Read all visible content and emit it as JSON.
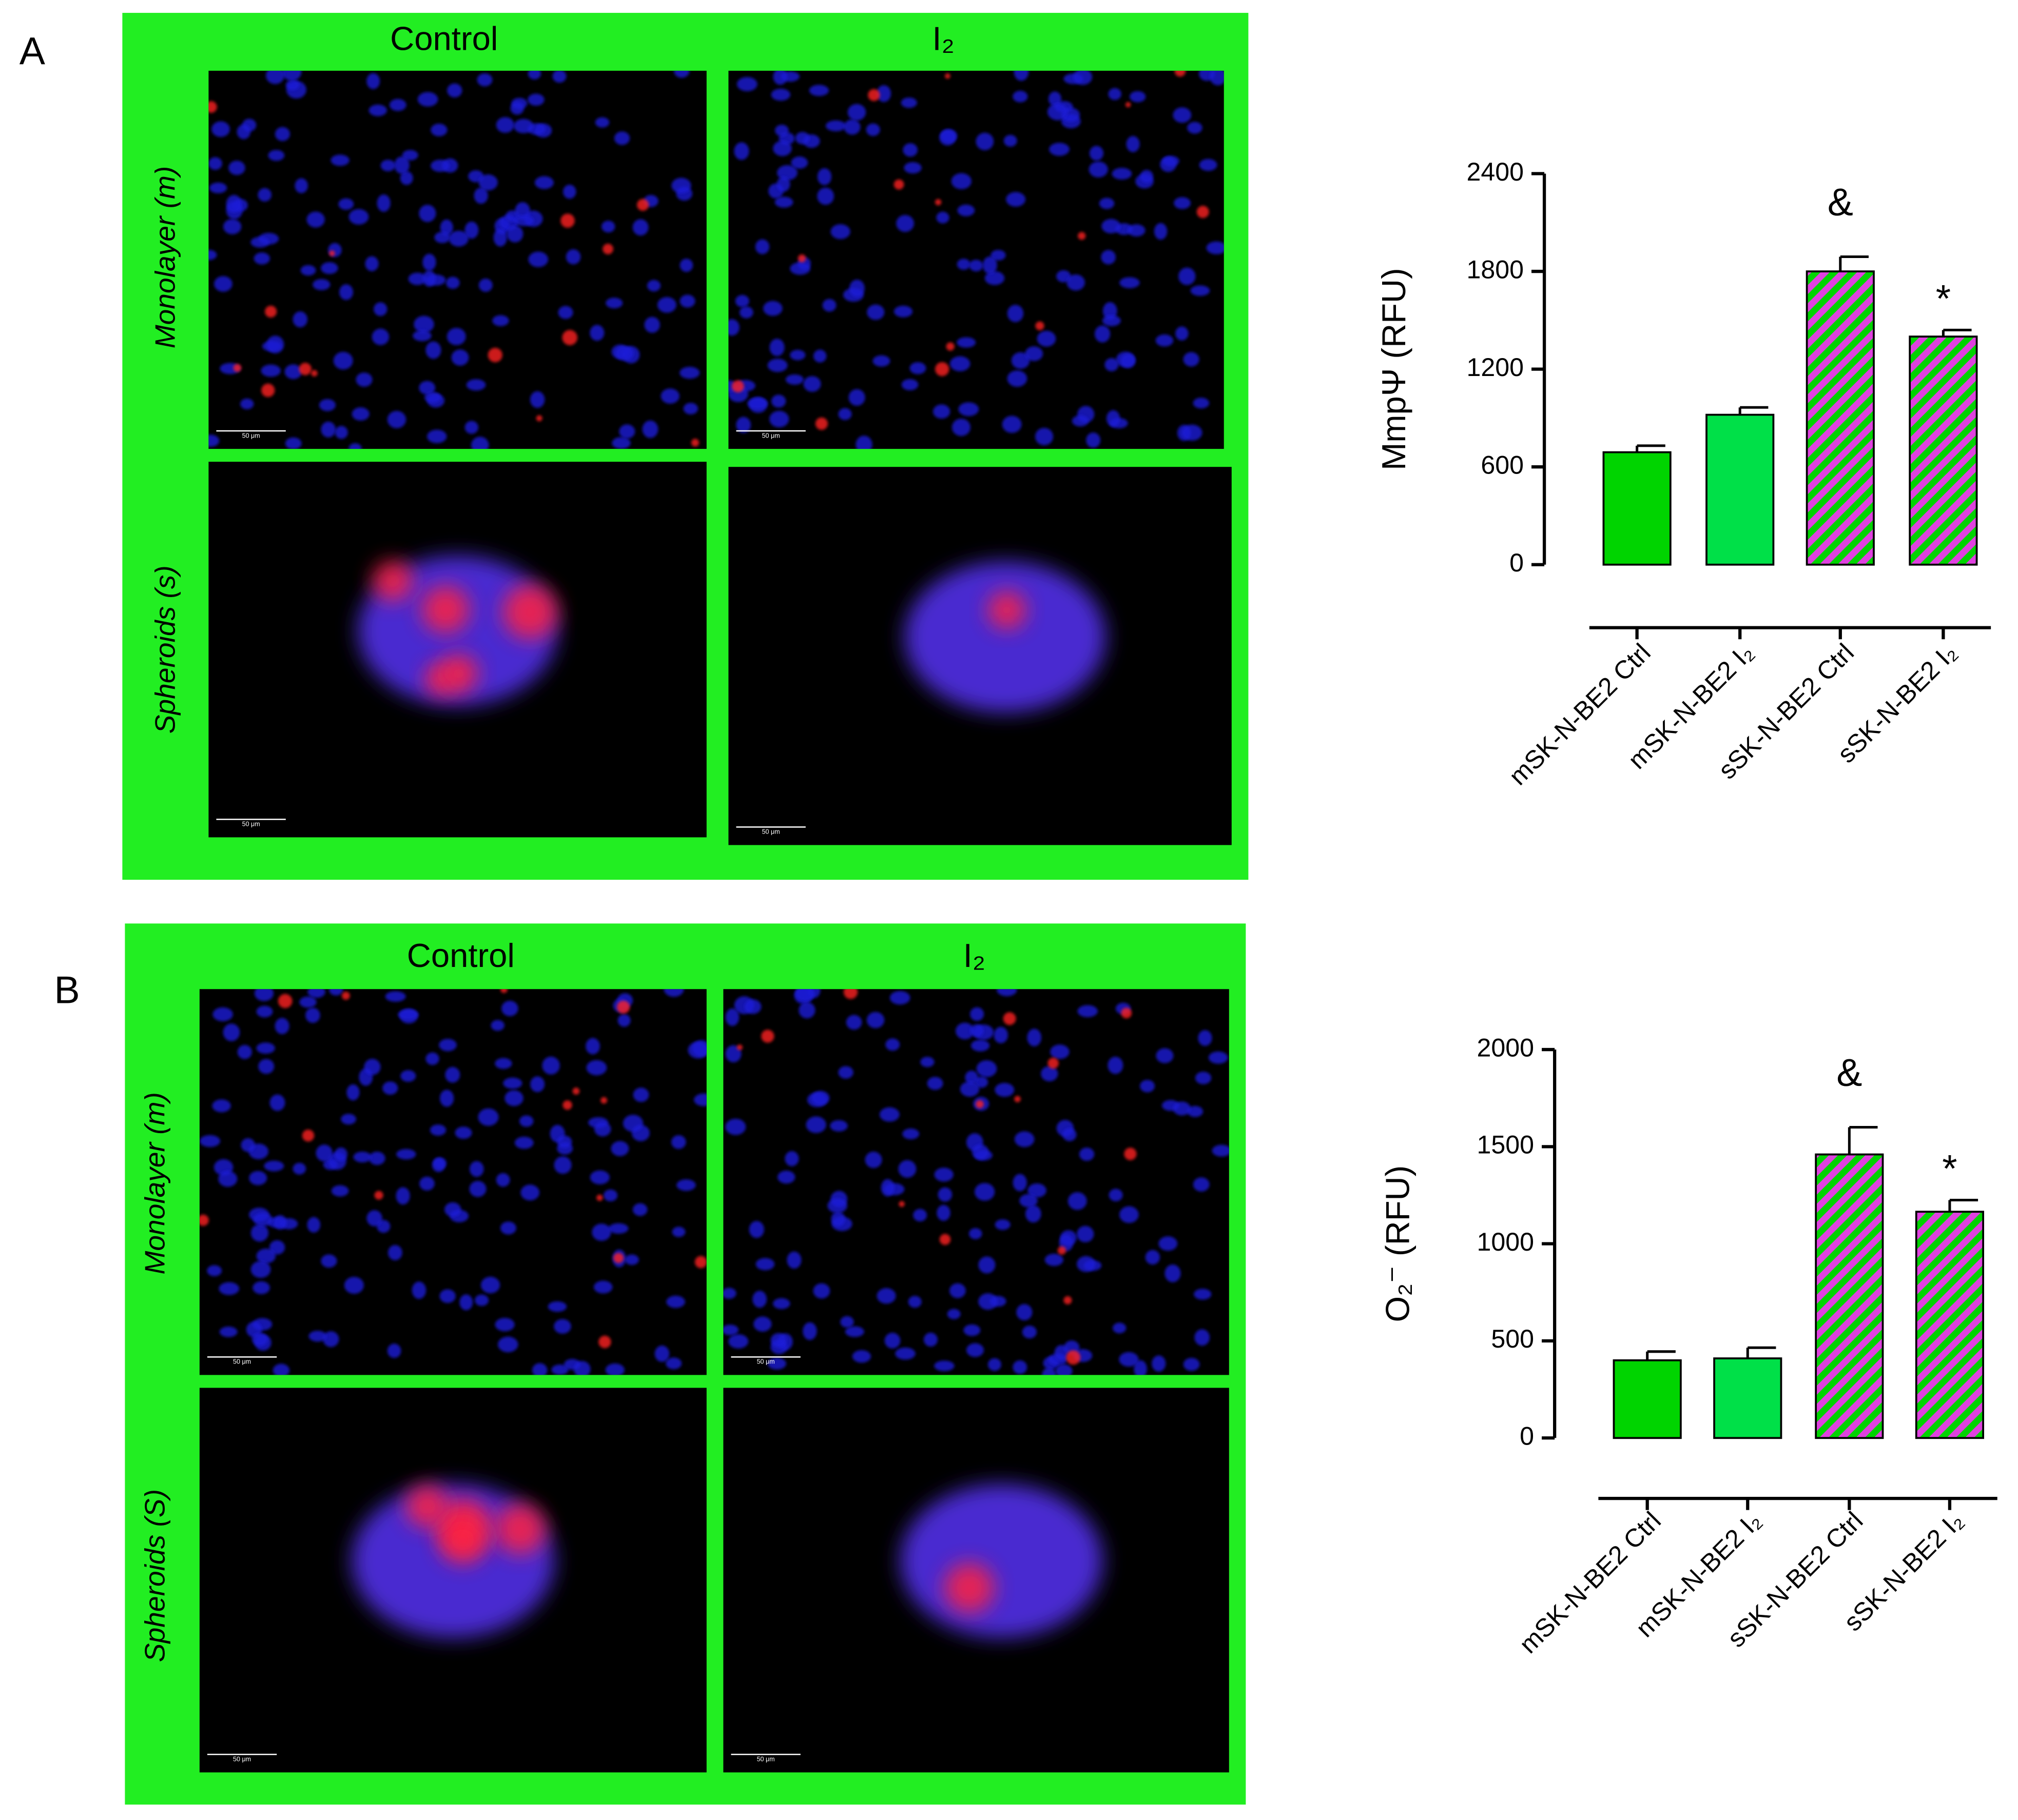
{
  "panels": [
    {
      "letter": "A",
      "columns": [
        "Control",
        "I₂"
      ],
      "rows": [
        "Monolayer (m)",
        "Spheroids (s)"
      ],
      "scale_bar": "50 μm"
    },
    {
      "letter": "B",
      "columns": [
        "Control",
        "I₂"
      ],
      "rows": [
        "Monolayer (m)",
        "Spheroids (S)"
      ],
      "scale_bar": "50 μm"
    }
  ],
  "chart_data": [
    {
      "type": "bar",
      "y_label": "MmpΨ (RFU)",
      "categories": [
        "mSK-N-BE2 Ctrl",
        "mSK-N-BE2 I₂",
        "sSK-N-BE2 Ctrl",
        "sSK-N-BE2 I₂"
      ],
      "values": [
        690,
        920,
        1800,
        1400
      ],
      "errors": [
        40,
        45,
        90,
        40
      ],
      "colors": [
        "#00d400",
        "#00e048",
        "#00d400",
        "#00d400"
      ],
      "hatched": [
        false,
        false,
        true,
        true
      ],
      "hatch_color": "#e040e0",
      "ylim": [
        0,
        2400
      ],
      "yticks": [
        0,
        600,
        1200,
        1800,
        2400
      ],
      "annotations": [
        {
          "text": "&",
          "index": 2
        },
        {
          "text": "*",
          "index": 3
        }
      ]
    },
    {
      "type": "bar",
      "y_label": "O₂⁻ (RFU)",
      "categories": [
        "mSK-N-BE2 Ctrl",
        "mSK-N-BE2 I₂",
        "sSK-N-BE2 Ctrl",
        "sSK-N-BE2 I₂"
      ],
      "values": [
        400,
        410,
        1460,
        1165
      ],
      "errors": [
        45,
        55,
        140,
        60
      ],
      "colors": [
        "#00d400",
        "#00e048",
        "#00d400",
        "#00d400"
      ],
      "hatched": [
        false,
        false,
        true,
        true
      ],
      "hatch_color": "#e040e0",
      "ylim": [
        0,
        2000
      ],
      "yticks": [
        0,
        500,
        1000,
        1500,
        2000
      ],
      "annotations": [
        {
          "text": "&",
          "index": 2
        },
        {
          "text": "*",
          "index": 3
        }
      ]
    }
  ]
}
